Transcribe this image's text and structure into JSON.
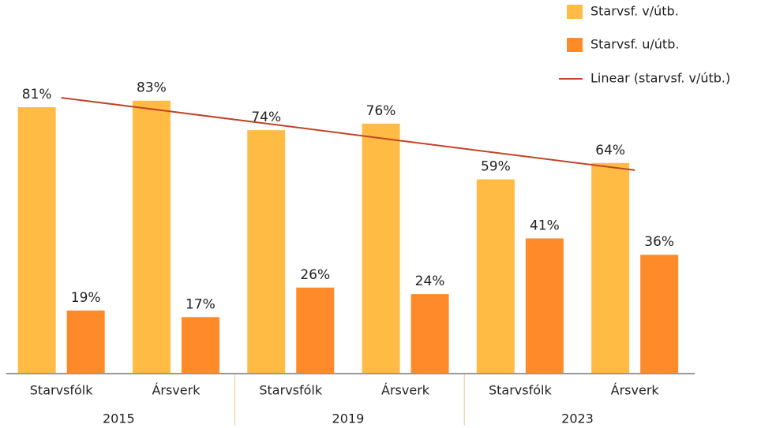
{
  "chart_data": {
    "type": "bar",
    "categories": [
      "Starvsfólk",
      "Ársverk",
      "Starvsfólk",
      "Ársverk",
      "Starvsfólk",
      "Ársverk"
    ],
    "groups": [
      "2015",
      "2019",
      "2023"
    ],
    "series": [
      {
        "name": "Starvsf. v/útb.",
        "color": "#ffbb44",
        "values": [
          81,
          83,
          74,
          76,
          59,
          64
        ],
        "value_labels": [
          "81%",
          "83%",
          "74%",
          "76%",
          "59%",
          "64%"
        ]
      },
      {
        "name": "Starvsf. u/útb.",
        "color": "#ff8a2a",
        "values": [
          19,
          17,
          26,
          24,
          41,
          36
        ],
        "value_labels": [
          "19%",
          "17%",
          "26%",
          "24%",
          "41%",
          "36%"
        ]
      }
    ],
    "trendline": {
      "name": "Linear (starvsf. v/útb.)",
      "color": "#c0442a",
      "values": [
        83.9,
        79.5,
        75.1,
        70.6,
        66.2,
        61.8
      ]
    },
    "ylim": [
      0,
      100
    ],
    "legend": "top-right"
  }
}
